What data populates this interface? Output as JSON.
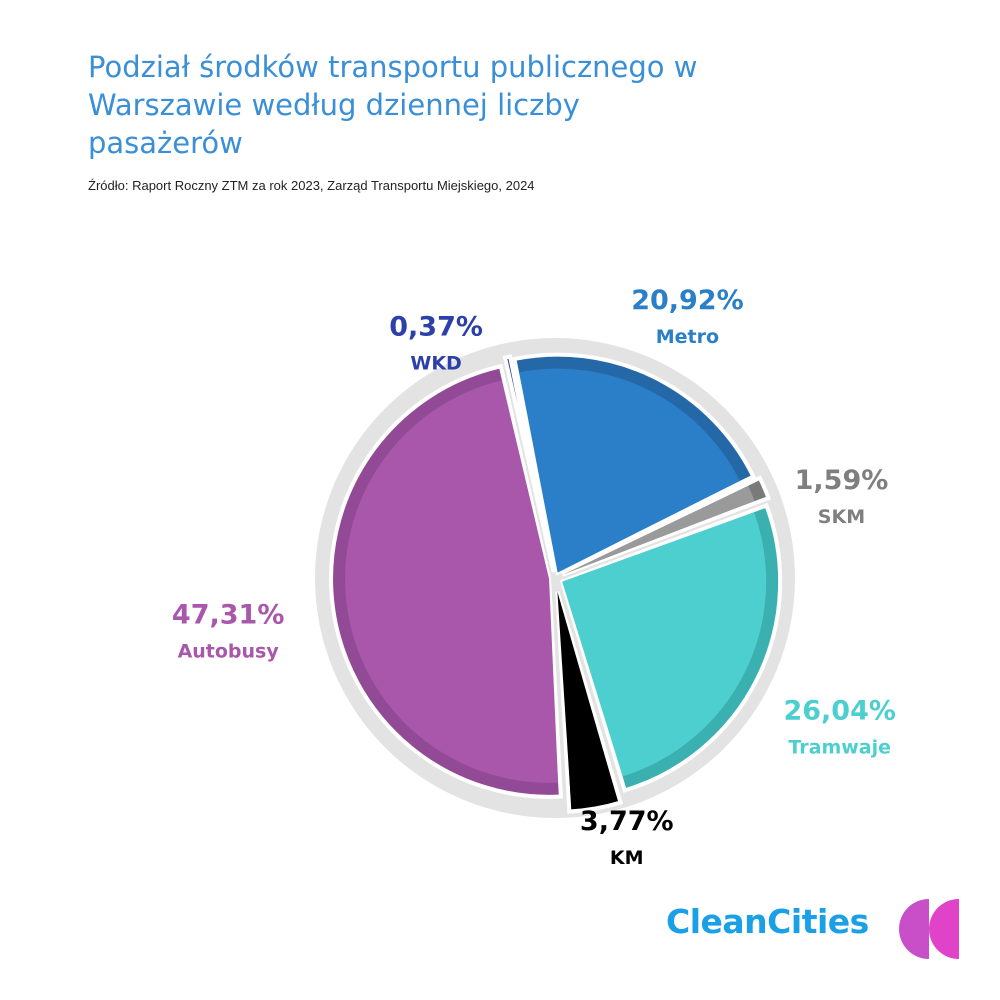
{
  "title": "Podział środków transportu publicznego w Warszawie według dziennej liczby pasażerów",
  "source": "Źródło: Raport Roczny ZTM za rok 2023, Zarząd Transportu Miejskiego, 2024",
  "brand": "CleanCities",
  "chart_data": {
    "type": "pie",
    "slices": [
      {
        "name": "Metro",
        "value_label": "20,92%",
        "value": 20.92,
        "color": "#2a7fc8",
        "rim": "#2468a8"
      },
      {
        "name": "SKM",
        "value_label": "1,59%",
        "value": 1.59,
        "color": "#9a9a9a",
        "rim": "#7a7a7a"
      },
      {
        "name": "Tramwaje",
        "value_label": "26,04%",
        "value": 26.04,
        "color": "#4ecfcf",
        "rim": "#3ab0b0"
      },
      {
        "name": "KM",
        "value_label": "3,77%",
        "value": 3.77,
        "color": "#000000",
        "rim": "#000000"
      },
      {
        "name": "Autobusy",
        "value_label": "47,31%",
        "value": 47.31,
        "color": "#a857ab",
        "rim": "#934a96"
      },
      {
        "name": "WKD",
        "value_label": "0,37%",
        "value": 0.37,
        "color": "#2d3fa8",
        "rim": "#24358f"
      }
    ]
  }
}
